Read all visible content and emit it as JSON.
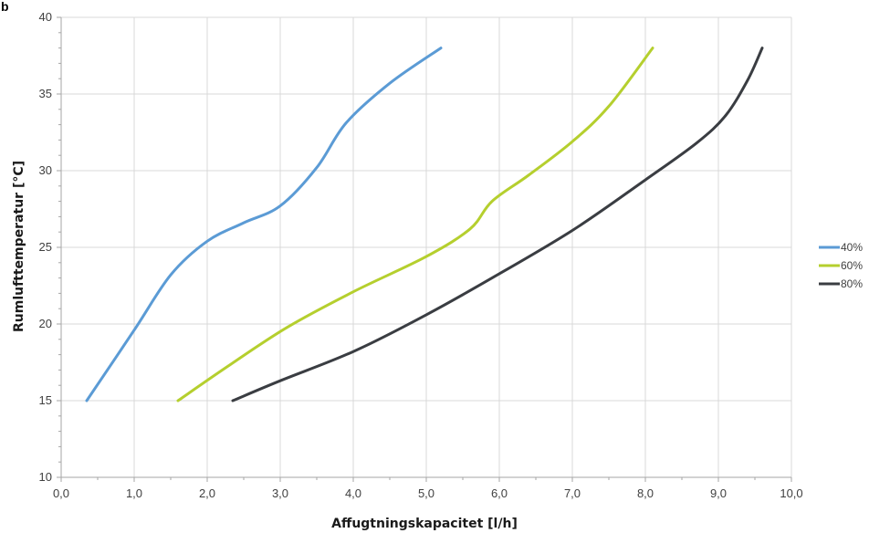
{
  "panel_label": "b",
  "chart_data": {
    "type": "line",
    "xlabel": "Affugtningskapacitet  [l/h]",
    "ylabel": "Rumlufttemperatur  [°C]",
    "xlim": [
      0,
      10
    ],
    "ylim": [
      10,
      40
    ],
    "x_ticks": [
      0,
      1,
      2,
      3,
      4,
      5,
      6,
      7,
      8,
      9,
      10
    ],
    "x_tick_labels": [
      "0,0",
      "1,0",
      "2,0",
      "3,0",
      "4,0",
      "5,0",
      "6,0",
      "7,0",
      "8,0",
      "9,0",
      "10,0"
    ],
    "y_ticks": [
      10,
      15,
      20,
      25,
      30,
      35,
      40
    ],
    "y_tick_labels": [
      "10",
      "15",
      "20",
      "25",
      "30",
      "35",
      "40"
    ],
    "grid": "vertical and horizontal major gridlines",
    "legend_position": "right",
    "series": [
      {
        "name": "40%",
        "color": "#5b9bd5",
        "points": [
          [
            0.35,
            15
          ],
          [
            1.0,
            19.6
          ],
          [
            1.5,
            23.2
          ],
          [
            2.0,
            25.4
          ],
          [
            2.5,
            26.6
          ],
          [
            3.0,
            27.7
          ],
          [
            3.5,
            30.2
          ],
          [
            3.9,
            33.1
          ],
          [
            4.5,
            35.7
          ],
          [
            5.2,
            38
          ]
        ]
      },
      {
        "name": "60%",
        "color": "#b5cf2e",
        "points": [
          [
            1.6,
            15
          ],
          [
            2.3,
            17.3
          ],
          [
            3.1,
            19.8
          ],
          [
            4.0,
            22.1
          ],
          [
            5.0,
            24.4
          ],
          [
            5.6,
            26.2
          ],
          [
            5.9,
            28.0
          ],
          [
            6.4,
            29.7
          ],
          [
            7.0,
            31.9
          ],
          [
            7.5,
            34.2
          ],
          [
            8.1,
            38
          ]
        ]
      },
      {
        "name": "80%",
        "color": "#3a3d42",
        "points": [
          [
            2.35,
            15
          ],
          [
            3.0,
            16.3
          ],
          [
            4.0,
            18.2
          ],
          [
            5.0,
            20.6
          ],
          [
            5.9,
            23.0
          ],
          [
            7.0,
            26.1
          ],
          [
            8.0,
            29.4
          ],
          [
            8.7,
            31.8
          ],
          [
            9.1,
            33.6
          ],
          [
            9.4,
            35.9
          ],
          [
            9.6,
            38
          ]
        ]
      }
    ]
  }
}
